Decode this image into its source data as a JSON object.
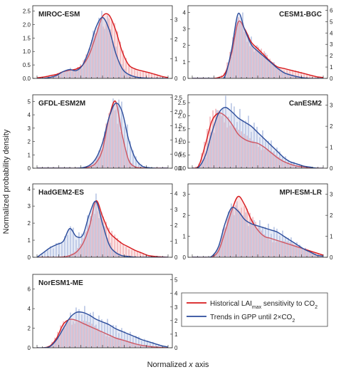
{
  "figure": {
    "ylabel": "Normalized probability density",
    "xlabel_prefix": "Normalized ",
    "xlabel_var": "x",
    "xlabel_suffix": " axis"
  },
  "legend": {
    "items": [
      {
        "text": "Historical LAI",
        "sub": "max",
        "text2": " sensitivity to CO",
        "sub2": "2",
        "color": "#d7191c"
      },
      {
        "text": "Trends in GPP until 2×CO",
        "sub": "2",
        "text2": "",
        "sub2": "",
        "color": "#2b4c9b"
      }
    ]
  },
  "colors": {
    "red": "#d7191c",
    "blue": "#2b4c9b",
    "red_fill": "#f4b6bb",
    "blue_fill": "#b9c7e6"
  },
  "chart_data": [
    {
      "type": "area",
      "title": "MIROC-ESM",
      "left_ticks": [
        "0.0",
        "0.5",
        "1.0",
        "1.5",
        "2.0",
        "2.5"
      ],
      "left_ylim": [
        0,
        2.7
      ],
      "right_ticks": [
        "0",
        "1",
        "2",
        "3"
      ],
      "right_ylim": [
        0,
        3.7
      ],
      "x": [
        0,
        0.05,
        0.1,
        0.15,
        0.2,
        0.25,
        0.3,
        0.35,
        0.4,
        0.45,
        0.5,
        0.55,
        0.6,
        0.65,
        0.7,
        0.75,
        0.8,
        0.85,
        0.9,
        0.95,
        1
      ],
      "series": [
        {
          "axis": "left",
          "values": [
            0.02,
            0.05,
            0.1,
            0.15,
            0.25,
            0.3,
            0.35,
            0.5,
            0.9,
            1.6,
            2.3,
            2.35,
            1.8,
            1.0,
            0.5,
            0.35,
            0.28,
            0.22,
            0.15,
            0.08,
            0.03
          ]
        },
        {
          "axis": "right",
          "values": [
            0,
            0,
            0.05,
            0.15,
            0.35,
            0.45,
            0.4,
            0.7,
            1.5,
            2.6,
            3.1,
            2.5,
            1.3,
            0.5,
            0.2,
            0.08,
            0.03,
            0.01,
            0,
            0,
            0
          ]
        }
      ]
    },
    {
      "type": "area",
      "title": "CESM1-BGC",
      "left_ticks": [
        "0",
        "1",
        "2",
        "3",
        "4"
      ],
      "left_ylim": [
        0,
        4.4
      ],
      "right_ticks": [
        "0",
        "1",
        "2",
        "3",
        "4",
        "5",
        "6"
      ],
      "right_ylim": [
        0,
        6.4
      ],
      "x": [
        0,
        0.05,
        0.1,
        0.15,
        0.2,
        0.25,
        0.3,
        0.35,
        0.4,
        0.45,
        0.5,
        0.55,
        0.6,
        0.65,
        0.7,
        0.75,
        0.8,
        0.85,
        0.9,
        0.95,
        1
      ],
      "series": [
        {
          "axis": "left",
          "values": [
            0,
            0,
            0,
            0,
            0.05,
            0.3,
            1.5,
            3.4,
            3.0,
            2.2,
            1.8,
            1.4,
            1.0,
            0.7,
            0.6,
            0.5,
            0.4,
            0.3,
            0.2,
            0.1,
            0.05
          ]
        },
        {
          "axis": "right",
          "values": [
            0,
            0,
            0,
            0,
            0,
            0.2,
            2.5,
            5.7,
            4.3,
            3.0,
            2.4,
            1.9,
            1.4,
            0.9,
            0.5,
            0.3,
            0.15,
            0.05,
            0,
            0,
            0
          ]
        }
      ]
    },
    {
      "type": "area",
      "title": "GFDL-ESM2M",
      "left_ticks": [
        "0",
        "1",
        "2",
        "3",
        "4",
        "5"
      ],
      "left_ylim": [
        0,
        5.5
      ],
      "right_ticks": [
        "0.0",
        "0.5",
        "1.0",
        "1.5",
        "2.0",
        "2.5"
      ],
      "right_ylim": [
        0,
        2.6
      ],
      "x": [
        0,
        0.05,
        0.1,
        0.15,
        0.2,
        0.25,
        0.3,
        0.35,
        0.4,
        0.45,
        0.5,
        0.55,
        0.6,
        0.65,
        0.7,
        0.75,
        0.8,
        0.85,
        0.9,
        0.95,
        1
      ],
      "series": [
        {
          "axis": "left",
          "values": [
            0,
            0,
            0,
            0,
            0,
            0,
            0,
            0.02,
            0.1,
            0.4,
            1.4,
            3.8,
            5.0,
            2.5,
            0.6,
            0.1,
            0.02,
            0,
            0,
            0,
            0
          ]
        },
        {
          "axis": "right",
          "values": [
            0,
            0,
            0,
            0,
            0,
            0,
            0,
            0.02,
            0.1,
            0.35,
            0.9,
            1.8,
            2.3,
            2.0,
            1.0,
            0.35,
            0.08,
            0.02,
            0,
            0,
            0
          ]
        }
      ]
    },
    {
      "type": "area",
      "title": "CanESM2",
      "left_ticks": [
        "0.0",
        "0.5",
        "1.0",
        "1.5",
        "2.0",
        "2.5"
      ],
      "left_ylim": [
        0,
        2.8
      ],
      "right_ticks": [
        "0",
        "1",
        "2",
        "3"
      ],
      "right_ylim": [
        0,
        3.5
      ],
      "x": [
        0,
        0.05,
        0.1,
        0.15,
        0.2,
        0.25,
        0.3,
        0.35,
        0.4,
        0.45,
        0.5,
        0.55,
        0.6,
        0.65,
        0.7,
        0.75,
        0.8,
        0.85,
        0.9,
        0.95,
        1
      ],
      "series": [
        {
          "axis": "left",
          "values": [
            0,
            0.1,
            0.9,
            1.8,
            2.1,
            2.0,
            1.7,
            1.3,
            1.1,
            1.0,
            0.95,
            0.8,
            0.6,
            0.4,
            0.25,
            0.15,
            0.08,
            0.05,
            0.02,
            0,
            0
          ]
        },
        {
          "axis": "right",
          "values": [
            0,
            0.05,
            0.6,
            1.7,
            2.6,
            2.9,
            2.7,
            2.4,
            2.2,
            2.0,
            1.7,
            1.4,
            1.1,
            0.8,
            0.5,
            0.3,
            0.2,
            0.1,
            0.05,
            0,
            0
          ]
        }
      ]
    },
    {
      "type": "area",
      "title": "HadGEM2-ES",
      "left_ticks": [
        "0",
        "1",
        "2",
        "3",
        "4"
      ],
      "left_ylim": [
        0,
        4.3
      ],
      "right_ticks": [
        "0",
        "1",
        "2",
        "3",
        "4"
      ],
      "right_ylim": [
        0,
        4.6
      ],
      "x": [
        0,
        0.05,
        0.1,
        0.15,
        0.2,
        0.25,
        0.3,
        0.35,
        0.4,
        0.45,
        0.5,
        0.55,
        0.6,
        0.65,
        0.7,
        0.75,
        0.8,
        0.85,
        0.9,
        0.95,
        1
      ],
      "series": [
        {
          "axis": "left",
          "values": [
            0,
            0,
            0,
            0,
            0.02,
            0.1,
            0.3,
            0.8,
            1.8,
            3.3,
            2.4,
            1.5,
            1.1,
            0.8,
            0.6,
            0.4,
            0.25,
            0.1,
            0.05,
            0.02,
            0
          ]
        },
        {
          "axis": "right",
          "values": [
            0,
            0.3,
            0.6,
            0.8,
            1.0,
            1.8,
            1.3,
            1.4,
            2.7,
            3.5,
            2.1,
            0.8,
            0.3,
            0.1,
            0.05,
            0,
            0,
            0,
            0,
            0,
            0
          ]
        }
      ]
    },
    {
      "type": "area",
      "title": "MPI-ESM-LR",
      "left_ticks": [
        "0",
        "1",
        "2",
        "3"
      ],
      "left_ylim": [
        0,
        3.5
      ],
      "right_ticks": [
        "0",
        "1",
        "2",
        "3"
      ],
      "right_ylim": [
        0,
        3.5
      ],
      "x": [
        0,
        0.05,
        0.1,
        0.15,
        0.2,
        0.25,
        0.3,
        0.35,
        0.4,
        0.45,
        0.5,
        0.55,
        0.6,
        0.65,
        0.7,
        0.75,
        0.8,
        0.85,
        0.9,
        0.95,
        1
      ],
      "series": [
        {
          "axis": "left",
          "values": [
            0,
            0,
            0,
            0.02,
            0.3,
            1.2,
            2.2,
            2.9,
            2.5,
            1.8,
            1.3,
            1.0,
            0.9,
            0.8,
            0.7,
            0.6,
            0.5,
            0.4,
            0.3,
            0.2,
            0.1
          ]
        },
        {
          "axis": "right",
          "values": [
            0,
            0,
            0,
            0.05,
            0.5,
            1.6,
            2.35,
            2.2,
            1.8,
            1.6,
            1.5,
            1.4,
            1.3,
            1.2,
            1.0,
            0.8,
            0.6,
            0.4,
            0.25,
            0.1,
            0.05
          ]
        }
      ]
    },
    {
      "type": "area",
      "title": "NorESM1-ME",
      "left_ticks": [
        "0",
        "2",
        "4",
        "6"
      ],
      "left_ylim": [
        0,
        7.5
      ],
      "right_ticks": [
        "0",
        "1",
        "2",
        "3",
        "4",
        "5"
      ],
      "right_ylim": [
        0,
        5.4
      ],
      "x": [
        0,
        0.05,
        0.1,
        0.15,
        0.2,
        0.25,
        0.3,
        0.35,
        0.4,
        0.45,
        0.5,
        0.55,
        0.6,
        0.65,
        0.7,
        0.75,
        0.8,
        0.85,
        0.9,
        0.95,
        1
      ],
      "series": [
        {
          "axis": "left",
          "values": [
            0,
            0,
            0.2,
            1.0,
            2.4,
            2.9,
            2.8,
            2.5,
            2.2,
            1.9,
            1.6,
            1.3,
            1.0,
            0.8,
            0.6,
            0.4,
            0.25,
            0.15,
            0.08,
            0.03,
            0
          ]
        },
        {
          "axis": "right",
          "values": [
            0,
            0,
            0.1,
            0.6,
            1.4,
            2.2,
            2.6,
            2.6,
            2.4,
            2.1,
            1.9,
            1.7,
            1.4,
            1.2,
            1.0,
            0.8,
            0.6,
            0.45,
            0.3,
            0.15,
            0.05
          ]
        }
      ]
    }
  ]
}
